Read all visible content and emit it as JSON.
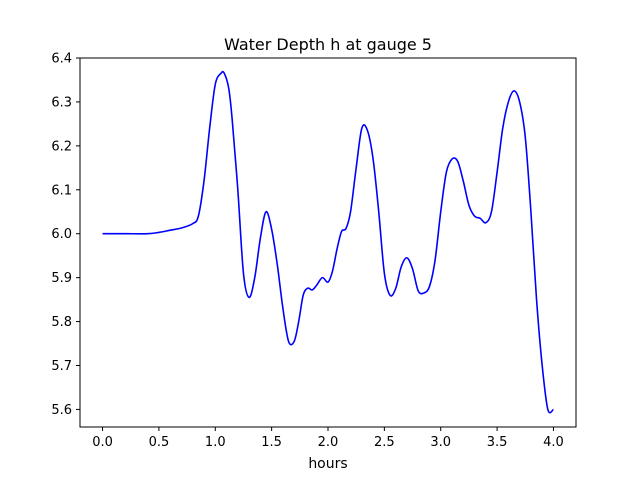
{
  "chart_data": {
    "type": "line",
    "title": "Water Depth h at gauge 5",
    "xlabel": "hours",
    "ylabel": "",
    "xlim": [
      -0.2,
      4.2
    ],
    "ylim": [
      5.56,
      6.4
    ],
    "xticks": [
      0.0,
      0.5,
      1.0,
      1.5,
      2.0,
      2.5,
      3.0,
      3.5,
      4.0
    ],
    "xtick_labels": [
      "0.0",
      "0.5",
      "1.0",
      "1.5",
      "2.0",
      "2.5",
      "3.0",
      "3.5",
      "4.0"
    ],
    "yticks": [
      5.6,
      5.7,
      5.8,
      5.9,
      6.0,
      6.1,
      6.2,
      6.3,
      6.4
    ],
    "ytick_labels": [
      "5.6",
      "5.7",
      "5.8",
      "5.9",
      "6.0",
      "6.1",
      "6.2",
      "6.3",
      "6.4"
    ],
    "grid": false,
    "legend": "none",
    "series": [
      {
        "color": "#0000ff",
        "x": [
          0.0,
          0.2,
          0.4,
          0.5,
          0.6,
          0.7,
          0.8,
          0.85,
          0.9,
          0.95,
          1.0,
          1.05,
          1.08,
          1.12,
          1.15,
          1.2,
          1.25,
          1.3,
          1.35,
          1.4,
          1.45,
          1.5,
          1.55,
          1.6,
          1.65,
          1.7,
          1.74,
          1.78,
          1.82,
          1.86,
          1.9,
          1.95,
          2.0,
          2.04,
          2.08,
          2.12,
          2.16,
          2.2,
          2.25,
          2.3,
          2.35,
          2.4,
          2.45,
          2.5,
          2.55,
          2.6,
          2.65,
          2.7,
          2.75,
          2.8,
          2.85,
          2.9,
          2.95,
          3.0,
          3.05,
          3.1,
          3.15,
          3.2,
          3.25,
          3.3,
          3.35,
          3.4,
          3.45,
          3.5,
          3.55,
          3.6,
          3.65,
          3.7,
          3.75,
          3.8,
          3.85,
          3.9,
          3.95,
          4.0
        ],
        "y": [
          6.0,
          6.0,
          6.0,
          6.003,
          6.008,
          6.013,
          6.023,
          6.04,
          6.12,
          6.24,
          6.34,
          6.365,
          6.365,
          6.33,
          6.26,
          6.1,
          5.91,
          5.855,
          5.9,
          5.99,
          6.05,
          6.01,
          5.93,
          5.83,
          5.755,
          5.755,
          5.8,
          5.86,
          5.876,
          5.872,
          5.883,
          5.9,
          5.89,
          5.915,
          5.965,
          6.005,
          6.012,
          6.05,
          6.15,
          6.24,
          6.235,
          6.17,
          6.05,
          5.91,
          5.86,
          5.875,
          5.925,
          5.945,
          5.92,
          5.87,
          5.865,
          5.88,
          5.94,
          6.05,
          6.14,
          6.17,
          6.165,
          6.12,
          6.065,
          6.04,
          6.035,
          6.025,
          6.05,
          6.14,
          6.24,
          6.3,
          6.325,
          6.3,
          6.22,
          6.05,
          5.85,
          5.7,
          5.6,
          5.6
        ]
      }
    ]
  }
}
